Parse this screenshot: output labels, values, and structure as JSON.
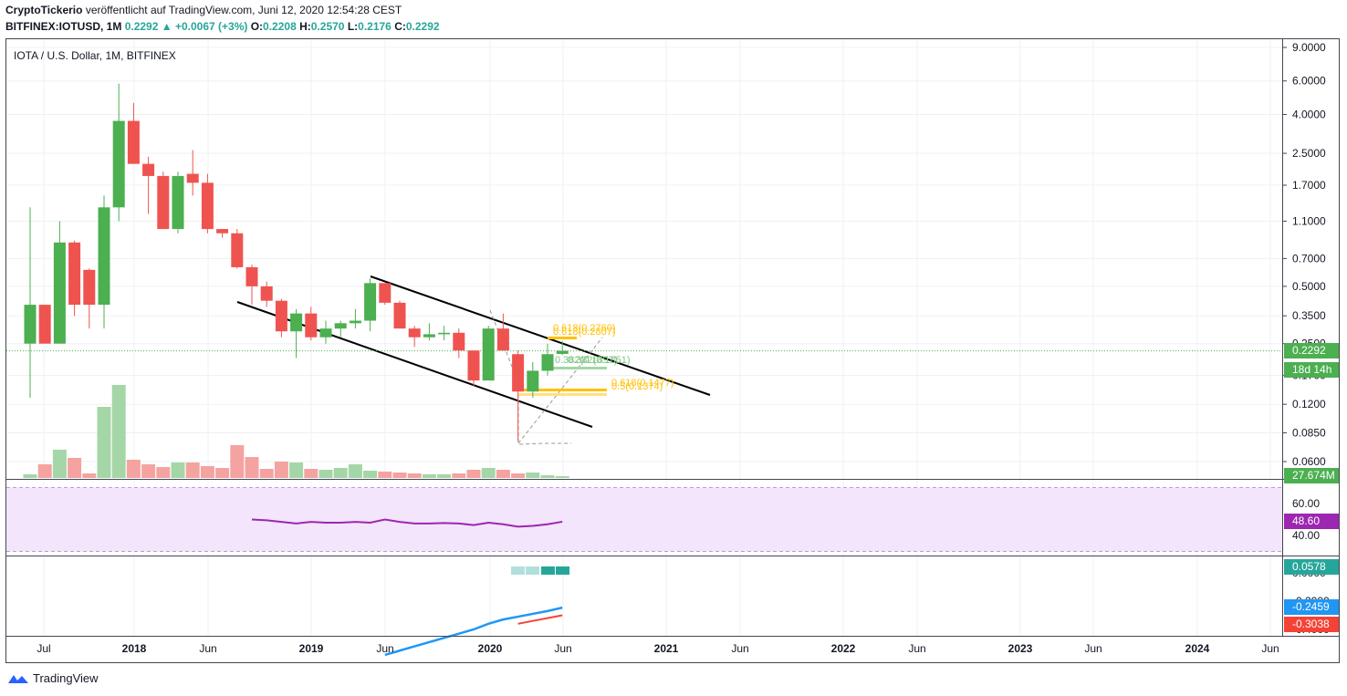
{
  "header": {
    "author": "CryptoTickerio",
    "published_text": "veröffentlicht auf TradingView.com, Juni 12, 2020 12:54:28 CEST",
    "symbol": "BITFINEX:IOTUSD, 1M",
    "last": "0.2292",
    "change": "+0.0067 (+3%)",
    "o_label": "O:",
    "o_val": "0.2208",
    "h_label": "H:",
    "h_val": "0.2570",
    "l_label": "L:",
    "l_val": "0.2176",
    "c_label": "C:",
    "c_val": "0.2292"
  },
  "footer": {
    "brand": "TradingView"
  },
  "colors": {
    "up": "#4caf50",
    "down": "#ef5350",
    "rsi": "#9c27b0",
    "rsi_band": "#f3e5fc",
    "blue": "#2196f3",
    "red": "#f44336",
    "fib": "#ffc107",
    "grid": "#eef0f3"
  },
  "chart_data": {
    "type": "candlestick",
    "title": "IOTA / U.S. Dollar, 1M, BITFINEX",
    "y_scale": "log",
    "ylim": [
      0.05,
      10
    ],
    "y_ticks": [
      "9.0000",
      "6.0000",
      "4.0000",
      "2.5000",
      "1.7000",
      "1.1000",
      "0.7000",
      "0.5000",
      "0.3500",
      "0.2500",
      "0.1700",
      "0.1200",
      "0.0850",
      "0.0600"
    ],
    "x_ticks": [
      "Jul",
      "2018",
      "Jun",
      "2019",
      "Jun",
      "2020",
      "Jun",
      "2021",
      "Jun",
      "2022",
      "Jun",
      "2023",
      "Jun",
      "2024",
      "Jun"
    ],
    "price_label": "0.2292",
    "countdown_label": "18d 14h",
    "volume_label": "27.674M",
    "candles": [
      {
        "o": 0.25,
        "h": 1.3,
        "l": 0.13,
        "c": 0.4
      },
      {
        "o": 0.4,
        "h": 0.4,
        "l": 0.25,
        "c": 0.25
      },
      {
        "o": 0.25,
        "h": 1.1,
        "l": 0.25,
        "c": 0.85
      },
      {
        "o": 0.85,
        "h": 0.87,
        "l": 0.35,
        "c": 0.4
      },
      {
        "o": 0.61,
        "h": 0.62,
        "l": 0.3,
        "c": 0.4
      },
      {
        "o": 0.4,
        "h": 1.5,
        "l": 0.3,
        "c": 1.3
      },
      {
        "o": 1.3,
        "h": 5.8,
        "l": 1.1,
        "c": 3.7
      },
      {
        "o": 3.7,
        "h": 4.6,
        "l": 2.2,
        "c": 2.2
      },
      {
        "o": 2.2,
        "h": 2.4,
        "l": 1.2,
        "c": 1.9
      },
      {
        "o": 1.9,
        "h": 2.0,
        "l": 1.0,
        "c": 1.0
      },
      {
        "o": 1.0,
        "h": 2.0,
        "l": 0.95,
        "c": 1.9
      },
      {
        "o": 1.95,
        "h": 2.6,
        "l": 1.5,
        "c": 1.75
      },
      {
        "o": 1.75,
        "h": 1.95,
        "l": 0.95,
        "c": 1.0
      },
      {
        "o": 1.0,
        "h": 1.0,
        "l": 0.9,
        "c": 0.95
      },
      {
        "o": 0.95,
        "h": 1.0,
        "l": 0.62,
        "c": 0.63
      },
      {
        "o": 0.63,
        "h": 0.65,
        "l": 0.4,
        "c": 0.5
      },
      {
        "o": 0.5,
        "h": 0.53,
        "l": 0.39,
        "c": 0.42
      },
      {
        "o": 0.42,
        "h": 0.43,
        "l": 0.27,
        "c": 0.29
      },
      {
        "o": 0.29,
        "h": 0.38,
        "l": 0.21,
        "c": 0.36
      },
      {
        "o": 0.36,
        "h": 0.39,
        "l": 0.26,
        "c": 0.27
      },
      {
        "o": 0.27,
        "h": 0.33,
        "l": 0.25,
        "c": 0.3
      },
      {
        "o": 0.3,
        "h": 0.33,
        "l": 0.27,
        "c": 0.32
      },
      {
        "o": 0.32,
        "h": 0.38,
        "l": 0.3,
        "c": 0.33
      },
      {
        "o": 0.33,
        "h": 0.55,
        "l": 0.29,
        "c": 0.52
      },
      {
        "o": 0.52,
        "h": 0.52,
        "l": 0.4,
        "c": 0.41
      },
      {
        "o": 0.41,
        "h": 0.42,
        "l": 0.3,
        "c": 0.3
      },
      {
        "o": 0.3,
        "h": 0.31,
        "l": 0.24,
        "c": 0.27
      },
      {
        "o": 0.27,
        "h": 0.32,
        "l": 0.26,
        "c": 0.28
      },
      {
        "o": 0.28,
        "h": 0.31,
        "l": 0.26,
        "c": 0.285
      },
      {
        "o": 0.285,
        "h": 0.3,
        "l": 0.21,
        "c": 0.23
      },
      {
        "o": 0.23,
        "h": 0.23,
        "l": 0.15,
        "c": 0.16
      },
      {
        "o": 0.16,
        "h": 0.31,
        "l": 0.16,
        "c": 0.3
      },
      {
        "o": 0.3,
        "h": 0.36,
        "l": 0.23,
        "c": 0.23
      },
      {
        "o": 0.22,
        "h": 0.23,
        "l": 0.077,
        "c": 0.14
      },
      {
        "o": 0.14,
        "h": 0.2,
        "l": 0.13,
        "c": 0.18
      },
      {
        "o": 0.18,
        "h": 0.25,
        "l": 0.17,
        "c": 0.22
      },
      {
        "o": 0.2208,
        "h": 0.257,
        "l": 0.2176,
        "c": 0.2292
      }
    ],
    "volume": [
      4,
      15,
      31,
      22,
      5,
      78,
      102,
      20,
      15,
      12,
      17,
      17,
      13,
      11,
      36,
      23,
      10,
      18,
      17,
      10,
      9,
      11,
      15,
      8,
      7,
      6,
      5,
      4,
      4,
      5,
      9,
      11,
      9,
      5,
      6,
      3,
      2
    ],
    "rsi": {
      "label": "48.60",
      "ticks": [
        "60.00",
        "40.00"
      ],
      "levels": [
        70,
        30
      ],
      "values": [
        null,
        null,
        null,
        null,
        null,
        null,
        null,
        null,
        null,
        null,
        null,
        null,
        null,
        null,
        null,
        50,
        49.5,
        48.5,
        47.5,
        48.5,
        48,
        48,
        48.5,
        48,
        50,
        48.5,
        47.5,
        47.5,
        47.8,
        47.5,
        46.5,
        48,
        47,
        45.5,
        46,
        47,
        48.6
      ]
    },
    "oscillator": {
      "ticks": [
        "0.0000",
        "-0.2000",
        "-0.4000"
      ],
      "labels": [
        "0.0578",
        "-0.2459",
        "-0.3038"
      ],
      "line1": [
        null,
        null,
        null,
        null,
        null,
        null,
        null,
        null,
        null,
        null,
        null,
        null,
        null,
        null,
        null,
        null,
        null,
        null,
        null,
        null,
        null,
        null,
        null,
        null,
        -0.58,
        -0.55,
        -0.52,
        -0.49,
        -0.46,
        -0.43,
        -0.4,
        -0.36,
        -0.33,
        -0.31,
        -0.29,
        -0.27,
        -0.246
      ],
      "line2": [
        null,
        null,
        null,
        null,
        null,
        null,
        null,
        null,
        null,
        null,
        null,
        null,
        null,
        null,
        null,
        null,
        null,
        null,
        null,
        null,
        null,
        null,
        null,
        null,
        null,
        null,
        null,
        null,
        null,
        null,
        null,
        null,
        null,
        -0.36,
        -0.34,
        -0.32,
        -0.3
      ],
      "hist_label": "0.0578"
    },
    "fib_labels": [
      {
        "text": "0.618(0.2807)",
        "color": "#ffc107"
      },
      {
        "text": "0.618(0.2760)",
        "color": "#ffc107"
      },
      {
        "text": "0.382(0.1897)",
        "color": "#81c784"
      },
      {
        "text": "0.382(0.1851)",
        "color": "#81c784"
      },
      {
        "text": "0.618(0.1477)",
        "color": "#ffc107"
      },
      {
        "text": "0.5(0.1374)",
        "color": "#ffc107"
      }
    ]
  }
}
